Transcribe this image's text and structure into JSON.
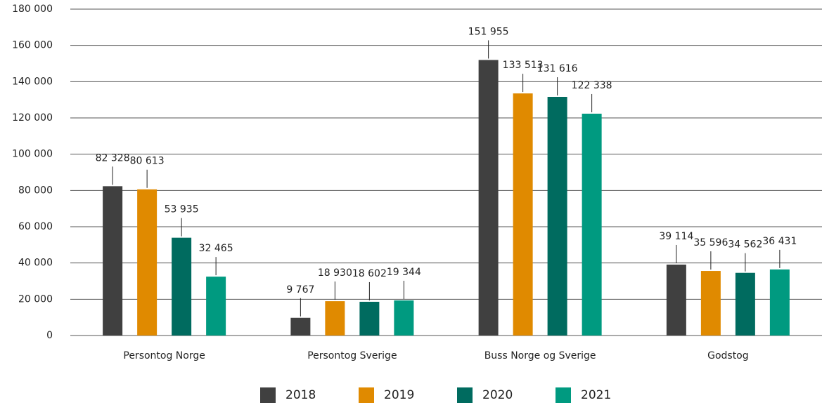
{
  "chart_data": {
    "type": "bar",
    "categories": [
      "Persontog Norge",
      "Persontog Sverige",
      "Buss Norge og Sverige",
      "Godstog"
    ],
    "series": [
      {
        "name": "2018",
        "color": "#404040",
        "values": [
          82328,
          9767,
          151955,
          39114
        ],
        "value_labels": [
          "82 328",
          "9 767",
          "151 955",
          "39 114"
        ]
      },
      {
        "name": "2019",
        "color": "#e08a00",
        "values": [
          80613,
          18930,
          133513,
          35596
        ],
        "value_labels": [
          "80 613",
          "18 930",
          "133 513",
          "35 596"
        ]
      },
      {
        "name": "2020",
        "color": "#006b5f",
        "values": [
          53935,
          18602,
          131616,
          34562
        ],
        "value_labels": [
          "53 935",
          "18 602",
          "131 616",
          "34 562"
        ]
      },
      {
        "name": "2021",
        "color": "#009a80",
        "values": [
          32465,
          19344,
          122338,
          36431
        ],
        "value_labels": [
          "32 465",
          "19 344",
          "122 338",
          "36 431"
        ]
      }
    ],
    "ylim": [
      0,
      180000
    ],
    "yticks": [
      0,
      {
        "value": 20000,
        "label": "20 000"
      },
      {
        "value": 40000,
        "label": "40 000"
      },
      {
        "value": 60000,
        "label": "60 000"
      },
      {
        "value": 80000,
        "label": "80 000"
      },
      {
        "value": 100000,
        "label": "100 000"
      },
      {
        "value": 120000,
        "label": "120 000"
      },
      {
        "value": 140000,
        "label": "140 000"
      },
      {
        "value": 160000,
        "label": "160 000"
      },
      {
        "value": 180000,
        "label": "180 000"
      }
    ],
    "grid": true,
    "legend": "bottom"
  }
}
